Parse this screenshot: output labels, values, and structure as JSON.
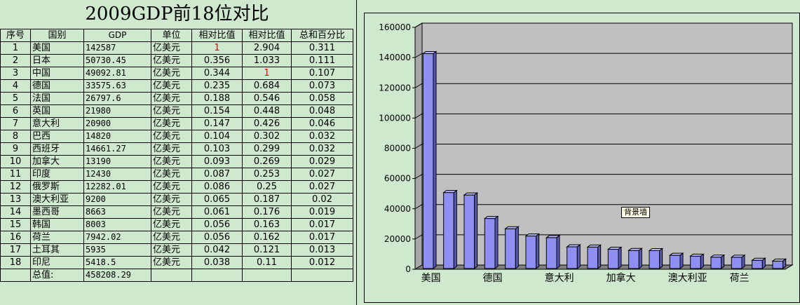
{
  "sheet": {
    "title": "2009GDP前18位对比",
    "headers": [
      "序号",
      "国别",
      "GDP",
      "单位",
      "相对比值",
      "相对比值",
      "总和百分比"
    ],
    "rows": [
      [
        "1",
        "美国",
        "142587",
        "亿美元",
        "1",
        "2.904",
        "0.311"
      ],
      [
        "2",
        "日本",
        "50730.45",
        "亿美元",
        "0.356",
        "1.033",
        "0.111"
      ],
      [
        "3",
        "中国",
        "49092.81",
        "亿美元",
        "0.344",
        "1",
        "0.107"
      ],
      [
        "4",
        "德国",
        "33575.63",
        "亿美元",
        "0.235",
        "0.684",
        "0.073"
      ],
      [
        "5",
        "法国",
        "26797.6",
        "亿美元",
        "0.188",
        "0.546",
        "0.058"
      ],
      [
        "6",
        "英国",
        "21980",
        "亿美元",
        "0.154",
        "0.448",
        "0.048"
      ],
      [
        "7",
        "意大利",
        "20900",
        "亿美元",
        "0.147",
        "0.426",
        "0.046"
      ],
      [
        "8",
        "巴西",
        "14820",
        "亿美元",
        "0.104",
        "0.302",
        "0.032"
      ],
      [
        "9",
        "西班牙",
        "14661.27",
        "亿美元",
        "0.103",
        "0.299",
        "0.032"
      ],
      [
        "10",
        "加拿大",
        "13190",
        "亿美元",
        "0.093",
        "0.269",
        "0.029"
      ],
      [
        "11",
        "印度",
        "12430",
        "亿美元",
        "0.087",
        "0.253",
        "0.027"
      ],
      [
        "12",
        "俄罗斯",
        "12282.01",
        "亿美元",
        "0.086",
        "0.25",
        "0.027"
      ],
      [
        "13",
        "澳大利亚",
        "9200",
        "亿美元",
        "0.065",
        "0.187",
        "0.02"
      ],
      [
        "14",
        "墨西哥",
        "8663",
        "亿美元",
        "0.061",
        "0.176",
        "0.019"
      ],
      [
        "15",
        "韩国",
        "8003",
        "亿美元",
        "0.056",
        "0.163",
        "0.017"
      ],
      [
        "16",
        "荷兰",
        "7942.02",
        "亿美元",
        "0.056",
        "0.162",
        "0.017"
      ],
      [
        "17",
        "土耳其",
        "5935",
        "亿美元",
        "0.042",
        "0.121",
        "0.013"
      ],
      [
        "18",
        "印尼",
        "5418.5",
        "亿美元",
        "0.038",
        "0.11",
        "0.012"
      ]
    ],
    "total_label": "总值:",
    "total_value": "458208.29"
  },
  "chart_data": {
    "type": "bar",
    "style": "3d-column",
    "categories": [
      "美国",
      "日本",
      "中国",
      "德国",
      "法国",
      "英国",
      "意大利",
      "巴西",
      "西班牙",
      "加拿大",
      "印度",
      "俄罗斯",
      "澳大利亚",
      "墨西哥",
      "韩国",
      "荷兰",
      "土耳其",
      "印尼"
    ],
    "shown_category_labels": [
      "美国",
      "德国",
      "意大利",
      "加拿大",
      "澳大利亚",
      "荷兰"
    ],
    "values": [
      142587,
      50730.45,
      49092.81,
      33575.63,
      26797.6,
      21980,
      20900,
      14820,
      14661.27,
      13190,
      12430,
      12282.01,
      9200,
      8663,
      8003,
      7942.02,
      5935,
      5418.5
    ],
    "ylim": [
      0,
      160000
    ],
    "yticks": [
      "0",
      "20000",
      "40000",
      "60000",
      "80000",
      "100000",
      "120000",
      "140000",
      "160000"
    ],
    "title": "",
    "xlabel": "",
    "ylabel": "",
    "grid": true,
    "legend": false,
    "bar_color": "#8f8ff2",
    "wall_color": "#c0c0c0",
    "tooltip": "背景墙"
  }
}
